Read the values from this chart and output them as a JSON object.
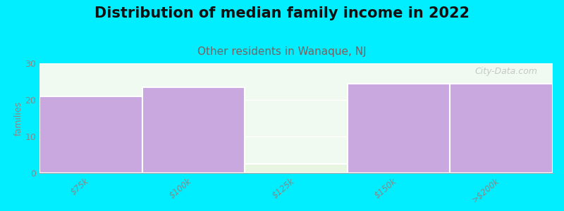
{
  "title": "Distribution of median family income in 2022",
  "subtitle": "Other residents in Wanaque, NJ",
  "categories": [
    "$75k",
    "$100k",
    "$125k",
    "$150k",
    ">$200k"
  ],
  "values": [
    21,
    23.5,
    2.5,
    24.5,
    24.5
  ],
  "bar_colors": [
    "#c9a8e0",
    "#c9a8e0",
    "#e8f5e0",
    "#c9a8e0",
    "#c9a8e0"
  ],
  "background_color": "#00eeff",
  "plot_bg_color": "#f0faf0",
  "ylabel": "families",
  "ylim": [
    0,
    30
  ],
  "yticks": [
    0,
    10,
    20,
    30
  ],
  "title_fontsize": 15,
  "subtitle_fontsize": 11,
  "subtitle_color": "#7a6060",
  "watermark": "City-Data.com",
  "bar_edgecolor": "white",
  "tick_label_color": "#888888",
  "ylabel_color": "#888888"
}
